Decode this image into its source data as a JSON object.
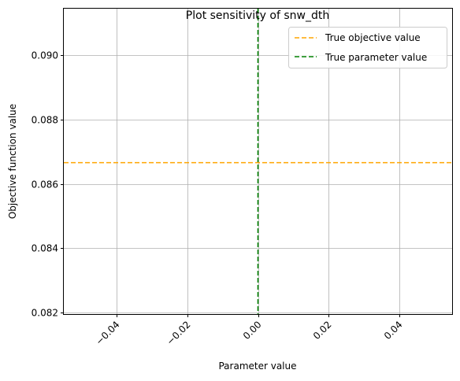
{
  "chart_data": {
    "type": "line",
    "title": "Plot sensitivity of snw_dth",
    "xlabel": "Parameter value",
    "ylabel": "Objective function value",
    "xlim": [
      -0.055,
      0.055
    ],
    "ylim": [
      0.08195,
      0.09145
    ],
    "x_ticks": [
      -0.04,
      -0.02,
      0.0,
      0.02,
      0.04
    ],
    "x_tick_labels": [
      "−0.04",
      "−0.02",
      "0.00",
      "0.02",
      "0.04"
    ],
    "y_ticks": [
      0.082,
      0.084,
      0.086,
      0.088,
      0.09
    ],
    "y_tick_labels": [
      "0.082",
      "0.084",
      "0.086",
      "0.088",
      "0.090"
    ],
    "grid": true,
    "legend_position": "top-right",
    "series": [
      {
        "name": "True objective value",
        "kind": "hline",
        "y": 0.08666,
        "color": "#ffa500",
        "style": "dashed"
      },
      {
        "name": "True parameter value",
        "kind": "vline",
        "x": 0.0,
        "color": "#008000",
        "style": "dashed"
      }
    ]
  }
}
